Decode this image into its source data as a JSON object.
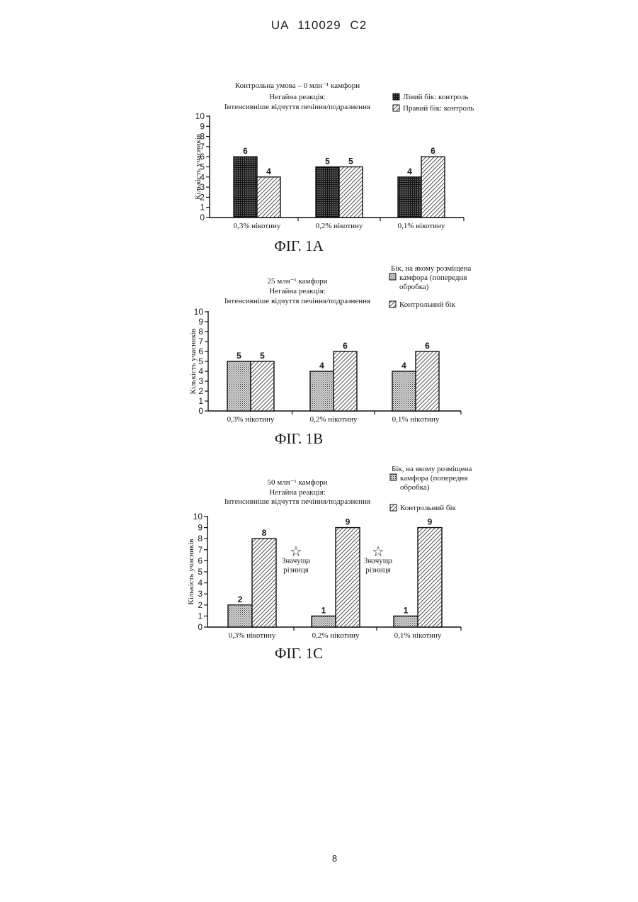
{
  "page": {
    "header": "UA   110029   C2",
    "page_number": "8"
  },
  "colors": {
    "ink": "#1a1a1a",
    "paper": "#ffffff"
  },
  "chart_data": [
    {
      "type": "bar",
      "figure_label": "ФІГ. 1A",
      "title_lines": [
        "Контрольна умова – 0 млн⁻¹ камфори",
        "Негайна реакція:",
        "Інтенсивніше відчуття печіння/подразнення"
      ],
      "ylabel": "Кількість учасників",
      "xlabel": "",
      "ylim": [
        0,
        10
      ],
      "yticks": [
        "0",
        "1",
        "2",
        "3",
        "4",
        "5",
        "6",
        "7",
        "8",
        "9",
        "10"
      ],
      "categories": [
        "0,3% нікотину",
        "0,2% нікотину",
        "0,1% нікотину"
      ],
      "series": [
        {
          "name": "Лівий бік: контроль",
          "pattern": "crosshatch",
          "values": [
            6,
            5,
            4
          ]
        },
        {
          "name": "Правий бік: контроль",
          "pattern": "diagonal",
          "values": [
            4,
            5,
            6
          ]
        }
      ],
      "annotations": [],
      "legend": "top-right",
      "grid": false
    },
    {
      "type": "bar",
      "figure_label": "ФІГ. 1B",
      "title_lines": [
        "25 млн⁻¹ камфори",
        "Негайна реакція:",
        "Інтенсивніше відчуття печіння/подразнення"
      ],
      "ylabel": "Кількість учасників",
      "xlabel": "",
      "ylim": [
        0,
        10
      ],
      "yticks": [
        "0",
        "1",
        "2",
        "3",
        "4",
        "5",
        "6",
        "7",
        "8",
        "9",
        "10"
      ],
      "categories": [
        "0,3% нікотину",
        "0,2% нікотину",
        "0,1% нікотину"
      ],
      "series": [
        {
          "name": "Бік, на якому розміщена камфора (попередня обробка)",
          "legend_lines": [
            "Бік, на якому розміщена",
            "камфора (попередня",
            "обробка)"
          ],
          "pattern": "dots",
          "values": [
            5,
            4,
            4
          ]
        },
        {
          "name": "Контрольний бік",
          "legend_lines": [
            "Контрольний бік"
          ],
          "pattern": "diagonal",
          "values": [
            5,
            6,
            6
          ]
        }
      ],
      "annotations": [],
      "legend": "top-right",
      "grid": false
    },
    {
      "type": "bar",
      "figure_label": "ФІГ. 1C",
      "title_lines": [
        "50 млн⁻¹ камфори",
        "Негайна реакція:",
        "Інтенсивніше відчуття печіння/подразнення"
      ],
      "ylabel": "Кількість учасників",
      "xlabel": "",
      "ylim": [
        0,
        10
      ],
      "yticks": [
        "0",
        "1",
        "2",
        "3",
        "4",
        "5",
        "6",
        "7",
        "8",
        "9",
        "10"
      ],
      "categories": [
        "0,3% нікотину",
        "0,2% нікотину",
        "0,1% нікотину"
      ],
      "series": [
        {
          "name": "Бік, на якому розміщена камфора (попередня обробка)",
          "legend_lines": [
            "Бік, на якому розміщена",
            "камфора (попередня",
            "обробка)"
          ],
          "pattern": "dots",
          "values": [
            2,
            1,
            1
          ]
        },
        {
          "name": "Контрольний бік",
          "legend_lines": [
            "Контрольний бік"
          ],
          "pattern": "diagonal",
          "values": [
            8,
            9,
            9
          ]
        }
      ],
      "annotations": [
        {
          "category_index": 1,
          "symbol": "☆",
          "lines": [
            "Значуща",
            "різниця"
          ]
        },
        {
          "category_index": 2,
          "symbol": "☆",
          "lines": [
            "Значуща",
            "різниця"
          ]
        }
      ],
      "legend": "top-right",
      "grid": false
    }
  ]
}
